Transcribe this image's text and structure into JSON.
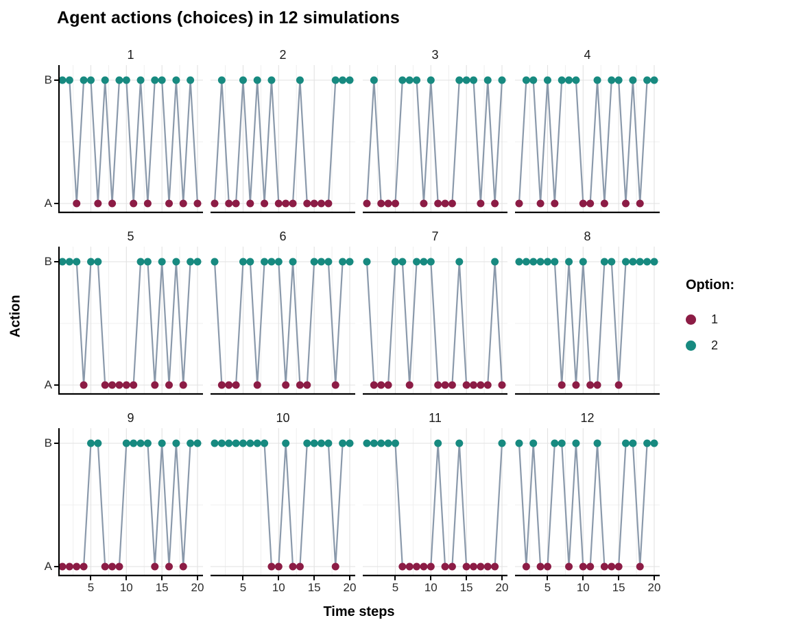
{
  "title": "Agent actions (choices) in 12 simulations",
  "colors": {
    "option1": "#8C1C45",
    "option2": "#178A80",
    "line": "#8A99AB",
    "grid_major": "#E2E2E2",
    "grid_minor": "#EFEFEF",
    "axis_line": "#000000",
    "background": "#FFFFFF"
  },
  "axes": {
    "x_label": "Time steps",
    "y_label": "Action",
    "x_ticks": [
      5,
      10,
      15,
      20
    ],
    "y_ticks": [
      "B",
      "A"
    ]
  },
  "legend": {
    "title": "Option:",
    "items": [
      {
        "label": "1",
        "option": 1
      },
      {
        "label": "2",
        "option": 2
      }
    ]
  },
  "chart_data": {
    "type": "line",
    "title": "Agent actions (choices) in 12 simulations",
    "xlabel": "Time steps",
    "ylabel": "Action",
    "x": [
      1,
      2,
      3,
      4,
      5,
      6,
      7,
      8,
      9,
      10,
      11,
      12,
      13,
      14,
      15,
      16,
      17,
      18,
      19,
      20
    ],
    "x_range": [
      1,
      20
    ],
    "y_categories": [
      "A",
      "B"
    ],
    "option_to_action": {
      "1": "A",
      "2": "B"
    },
    "legend_title": "Option:",
    "legend_position": "right",
    "grid": true,
    "facet_layout": {
      "rows": 3,
      "cols": 4
    },
    "facets": [
      {
        "label": "1",
        "choices": [
          2,
          2,
          1,
          2,
          2,
          1,
          2,
          1,
          2,
          2,
          1,
          2,
          1,
          2,
          2,
          1,
          2,
          1,
          2,
          1
        ]
      },
      {
        "label": "2",
        "choices": [
          1,
          2,
          1,
          1,
          2,
          1,
          2,
          1,
          2,
          1,
          1,
          1,
          2,
          1,
          1,
          1,
          1,
          2,
          2,
          2
        ]
      },
      {
        "label": "3",
        "choices": [
          1,
          2,
          1,
          1,
          1,
          2,
          2,
          2,
          1,
          2,
          1,
          1,
          1,
          2,
          2,
          2,
          1,
          2,
          1,
          2
        ]
      },
      {
        "label": "4",
        "choices": [
          1,
          2,
          2,
          1,
          2,
          1,
          2,
          2,
          2,
          1,
          1,
          2,
          1,
          2,
          2,
          1,
          2,
          1,
          2,
          2
        ]
      },
      {
        "label": "5",
        "choices": [
          2,
          2,
          2,
          1,
          2,
          2,
          1,
          1,
          1,
          1,
          1,
          2,
          2,
          1,
          2,
          1,
          2,
          1,
          2,
          2
        ]
      },
      {
        "label": "6",
        "choices": [
          2,
          1,
          1,
          1,
          2,
          2,
          1,
          2,
          2,
          2,
          1,
          2,
          1,
          1,
          2,
          2,
          2,
          1,
          2,
          2
        ]
      },
      {
        "label": "7",
        "choices": [
          2,
          1,
          1,
          1,
          2,
          2,
          1,
          2,
          2,
          2,
          1,
          1,
          1,
          2,
          1,
          1,
          1,
          1,
          2,
          1
        ]
      },
      {
        "label": "8",
        "choices": [
          2,
          2,
          2,
          2,
          2,
          2,
          1,
          2,
          1,
          2,
          1,
          1,
          2,
          2,
          1,
          2,
          2,
          2,
          2,
          2
        ]
      },
      {
        "label": "9",
        "choices": [
          1,
          1,
          1,
          1,
          2,
          2,
          1,
          1,
          1,
          2,
          2,
          2,
          2,
          1,
          2,
          1,
          2,
          1,
          2,
          2
        ]
      },
      {
        "label": "10",
        "choices": [
          2,
          2,
          2,
          2,
          2,
          2,
          2,
          2,
          1,
          1,
          2,
          1,
          1,
          2,
          2,
          2,
          2,
          1,
          2,
          2
        ]
      },
      {
        "label": "11",
        "choices": [
          2,
          2,
          2,
          2,
          2,
          1,
          1,
          1,
          1,
          1,
          2,
          1,
          1,
          2,
          1,
          1,
          1,
          1,
          1,
          2
        ]
      },
      {
        "label": "12",
        "choices": [
          2,
          1,
          2,
          1,
          1,
          2,
          2,
          1,
          2,
          1,
          1,
          2,
          1,
          1,
          1,
          2,
          2,
          1,
          2,
          2
        ]
      }
    ]
  }
}
